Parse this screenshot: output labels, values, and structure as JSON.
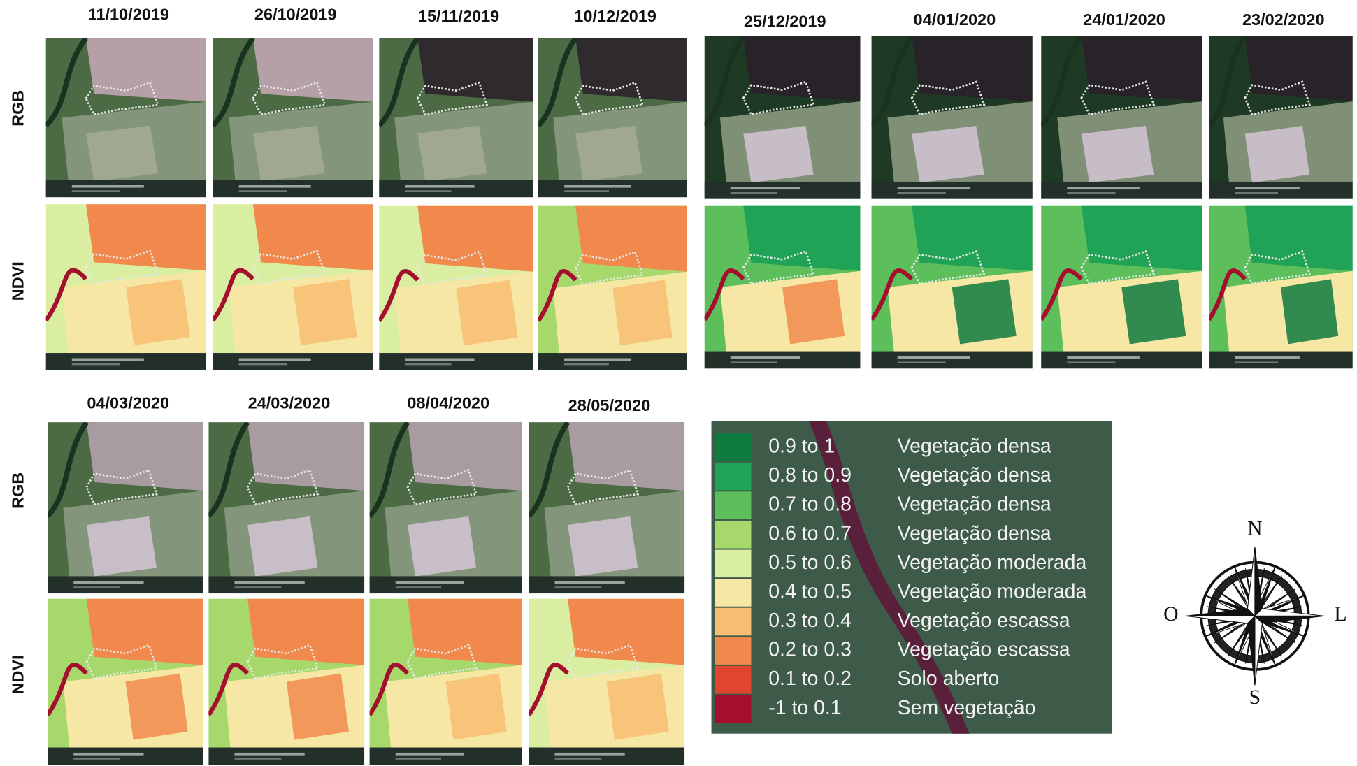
{
  "dates": [
    "11/10/2019",
    "26/10/2019",
    "15/11/2019",
    "10/12/2019",
    "25/12/2019",
    "04/01/2020",
    "24/01/2020",
    "23/02/2020",
    "04/03/2020",
    "24/03/2020",
    "08/04/2020",
    "28/05/2020"
  ],
  "row_labels": [
    "RGB",
    "NDVI"
  ],
  "legend": [
    {
      "range": "0.9 to 1",
      "label": "Vegetação densa",
      "color": "#0e7a3e"
    },
    {
      "range": "0.8 to 0.9",
      "label": "Vegetação densa",
      "color": "#21a357"
    },
    {
      "range": "0.7 to 0.8",
      "label": "Vegetação densa",
      "color": "#5dbf5b"
    },
    {
      "range": "0.6 to 0.7",
      "label": "Vegetação densa",
      "color": "#a6d86b"
    },
    {
      "range": "0.5 to 0.6",
      "label": "Vegetação moderada",
      "color": "#d9eea1"
    },
    {
      "range": "0.4 to 0.5",
      "label": "Vegetação moderada",
      "color": "#f6e7a5"
    },
    {
      "range": "0.3 to 0.4",
      "label": "Vegetação escassa",
      "color": "#f7bd72"
    },
    {
      "range": "0.2 to 0.3",
      "label": "Vegetação escassa",
      "color": "#f1894c"
    },
    {
      "range": "0.1 to 0.2",
      "label": "Solo aberto",
      "color": "#e2452d"
    },
    {
      "range": "-1 to 0.1",
      "label": "Sem vegetação",
      "color": "#a50f2e"
    }
  ],
  "compass": {
    "north": "N",
    "south": "S",
    "west": "O",
    "east": "L"
  }
}
